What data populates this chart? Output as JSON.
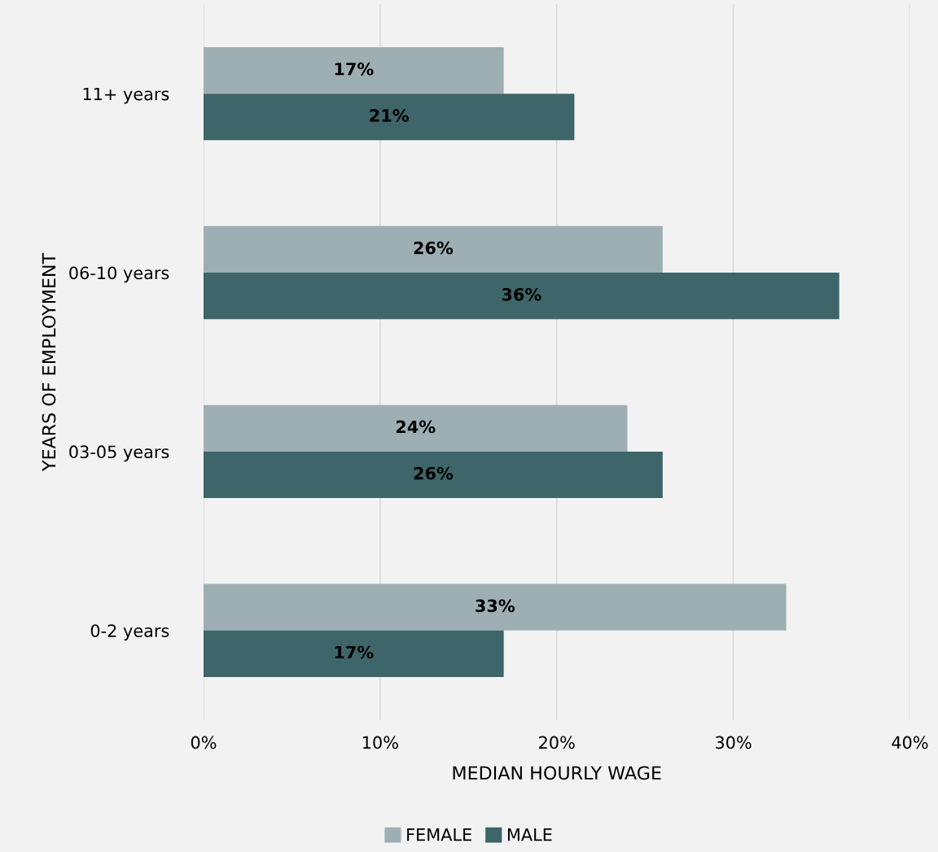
{
  "chart_data": {
    "type": "bar",
    "orientation": "horizontal",
    "xlabel": "MEDIAN HOURLY WAGE",
    "ylabel": "YEARS OF EMPLOYMENT",
    "categories": [
      "11+ years",
      "06-10 years",
      "03-05 years",
      "0-2 years"
    ],
    "series": [
      {
        "name": "FEMALE",
        "color": "#9eafb4",
        "values": [
          17,
          26,
          24,
          33
        ],
        "value_labels": [
          "17%",
          "26%",
          "24%",
          "33%"
        ]
      },
      {
        "name": "MALE",
        "color": "#3e6569",
        "values": [
          21,
          36,
          26,
          17
        ],
        "value_labels": [
          "21%",
          "36%",
          "26%",
          "17%"
        ]
      }
    ],
    "xlim": [
      0,
      40
    ],
    "xticks": [
      {
        "value": 0,
        "label": "0%"
      },
      {
        "value": 10,
        "label": "10%"
      },
      {
        "value": 20,
        "label": "20%"
      },
      {
        "value": 30,
        "label": "30%"
      },
      {
        "value": 40,
        "label": "40%"
      }
    ],
    "grid": "x",
    "legend": "bottom"
  }
}
